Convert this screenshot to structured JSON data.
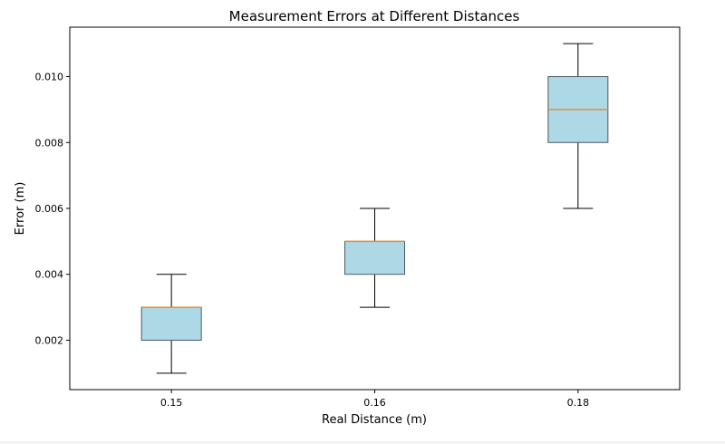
{
  "chart_data": {
    "type": "box",
    "title": "Measurement Errors at Different Distances",
    "xlabel": "Real Distance (m)",
    "ylabel": "Error (m)",
    "categories": [
      "0.15",
      "0.16",
      "0.18"
    ],
    "boxes": [
      {
        "category": "0.15",
        "whisker_low": 0.001,
        "q1": 0.002,
        "median": 0.003,
        "q3": 0.003,
        "whisker_high": 0.004
      },
      {
        "category": "0.16",
        "whisker_low": 0.003,
        "q1": 0.004,
        "median": 0.005,
        "q3": 0.005,
        "whisker_high": 0.006
      },
      {
        "category": "0.18",
        "whisker_low": 0.006,
        "q1": 0.008,
        "median": 0.009,
        "q3": 0.01,
        "whisker_high": 0.011
      }
    ],
    "yticks": [
      0.002,
      0.004,
      0.006,
      0.008,
      0.01
    ],
    "ytick_labels": [
      "0.002",
      "0.004",
      "0.006",
      "0.008",
      "0.010"
    ],
    "ylim": [
      0.0005,
      0.0115
    ],
    "grid": false,
    "colors": {
      "box_fill": "#add8e6",
      "box_edge": "#4d5a66",
      "median": "#e0913a",
      "whisker": "#000000"
    }
  }
}
